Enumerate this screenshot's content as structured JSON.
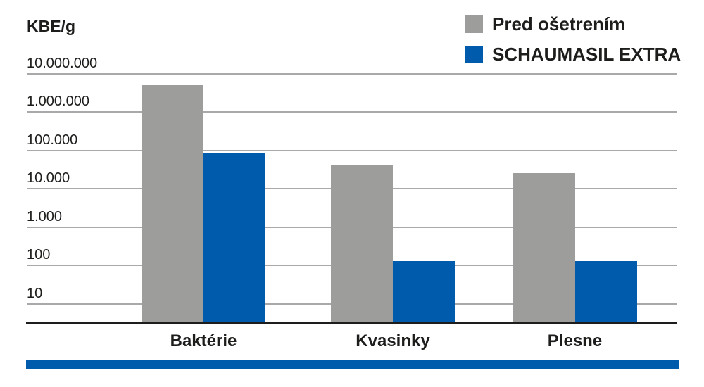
{
  "chart_data": {
    "type": "bar",
    "scale": "log",
    "ylabel": "KBE/g",
    "categories": [
      "Baktérie",
      "Kvasinky",
      "Plesne"
    ],
    "series": [
      {
        "name": "Pred ošetrením",
        "color": "#9d9d9c",
        "values": [
          5000000,
          40000,
          25000
        ]
      },
      {
        "name": "SCHAUMASIL EXTRA",
        "color": "#005bac",
        "values": [
          85000,
          130,
          130
        ]
      }
    ],
    "yticks": [
      {
        "label": "10.000.000",
        "value": 10000000
      },
      {
        "label": "1.000.000",
        "value": 1000000
      },
      {
        "label": "100.000",
        "value": 100000
      },
      {
        "label": "10.000",
        "value": 10000
      },
      {
        "label": "1.000",
        "value": 1000
      },
      {
        "label": "100",
        "value": 100
      },
      {
        "label": "10",
        "value": 10
      }
    ],
    "grid": true,
    "legend_position": "top-right",
    "grid_color": "#a9a9a9",
    "axis_color": "#1d1d1b",
    "text_color": "#1d1d1b"
  },
  "footer_bar": {
    "color": "#005bac"
  }
}
